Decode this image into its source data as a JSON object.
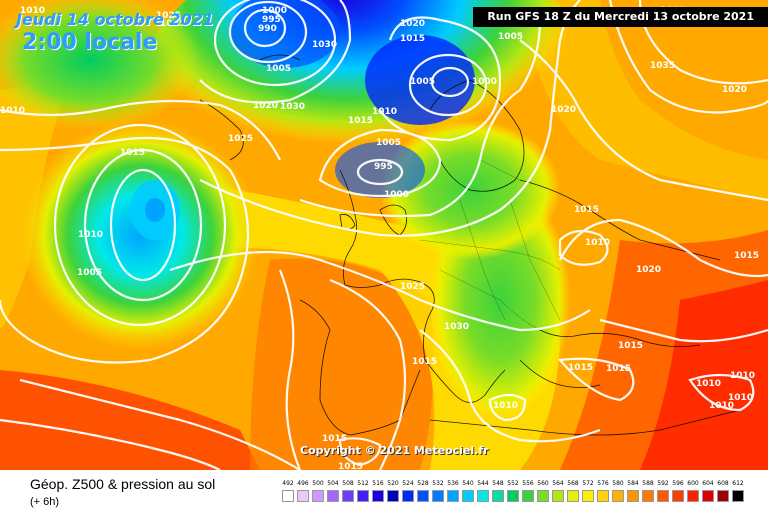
{
  "header": {
    "date": "Jeudi 14 octobre 2021",
    "local_time": "2:00 locale",
    "run": "Run GFS 18 Z du Mercredi 13 octobre 2021"
  },
  "copyright": "Copyright © 2021 Meteociel.fr",
  "footer": {
    "title": "Géop. Z500 & pression au sol",
    "subtitle": "(+ 6h)"
  },
  "scale": {
    "labels": [
      "492",
      "496",
      "500",
      "504",
      "508",
      "512",
      "516",
      "520",
      "524",
      "528",
      "532",
      "536",
      "540",
      "544",
      "548",
      "552",
      "556",
      "560",
      "564",
      "568",
      "572",
      "576",
      "580",
      "584",
      "588",
      "592",
      "596",
      "600",
      "604",
      "608",
      "612"
    ],
    "colors": [
      "#ffffff",
      "#e8c8ff",
      "#cc99ff",
      "#a066ff",
      "#6e3cff",
      "#3c1eff",
      "#1a00e0",
      "#0000c0",
      "#0026ff",
      "#0050ff",
      "#007aff",
      "#00a4ff",
      "#00ccff",
      "#00e8e8",
      "#00e0a0",
      "#00cc60",
      "#3cd23c",
      "#78dc28",
      "#b4e614",
      "#e6f000",
      "#fff000",
      "#ffd200",
      "#ffb400",
      "#ff9600",
      "#ff7800",
      "#ff5a00",
      "#ff3c00",
      "#ff1e00",
      "#e00000",
      "#a00000",
      "#000000"
    ]
  },
  "isobars": [
    {
      "value": "1010"
    },
    {
      "value": "1025"
    },
    {
      "value": "1000"
    },
    {
      "value": "995"
    },
    {
      "value": "990"
    },
    {
      "value": "1020"
    },
    {
      "value": "1005"
    },
    {
      "value": "1040"
    },
    {
      "value": "1015"
    },
    {
      "value": "1030"
    },
    {
      "value": "1035"
    },
    {
      "value": "1025"
    },
    {
      "value": "1010"
    },
    {
      "value": "1005"
    },
    {
      "value": "1000"
    },
    {
      "value": "1005"
    },
    {
      "value": "1010"
    },
    {
      "value": "1015"
    },
    {
      "value": "1030"
    },
    {
      "value": "1025"
    },
    {
      "value": "1020"
    },
    {
      "value": "1015"
    },
    {
      "value": "1010"
    },
    {
      "value": "1005"
    },
    {
      "value": "995"
    },
    {
      "value": "1000"
    },
    {
      "value": "1005"
    },
    {
      "value": "1015"
    },
    {
      "value": "1010"
    },
    {
      "value": "1020"
    },
    {
      "value": "1015"
    },
    {
      "value": "1025"
    },
    {
      "value": "1030"
    },
    {
      "value": "1020"
    },
    {
      "value": "1015"
    },
    {
      "value": "1015"
    },
    {
      "value": "1015"
    },
    {
      "value": "1010"
    },
    {
      "value": "1010"
    },
    {
      "value": "1010"
    },
    {
      "value": "1010"
    },
    {
      "value": "1015"
    },
    {
      "value": "1015"
    },
    {
      "value": "1015"
    },
    {
      "value": "1020"
    },
    {
      "value": "1010"
    }
  ]
}
